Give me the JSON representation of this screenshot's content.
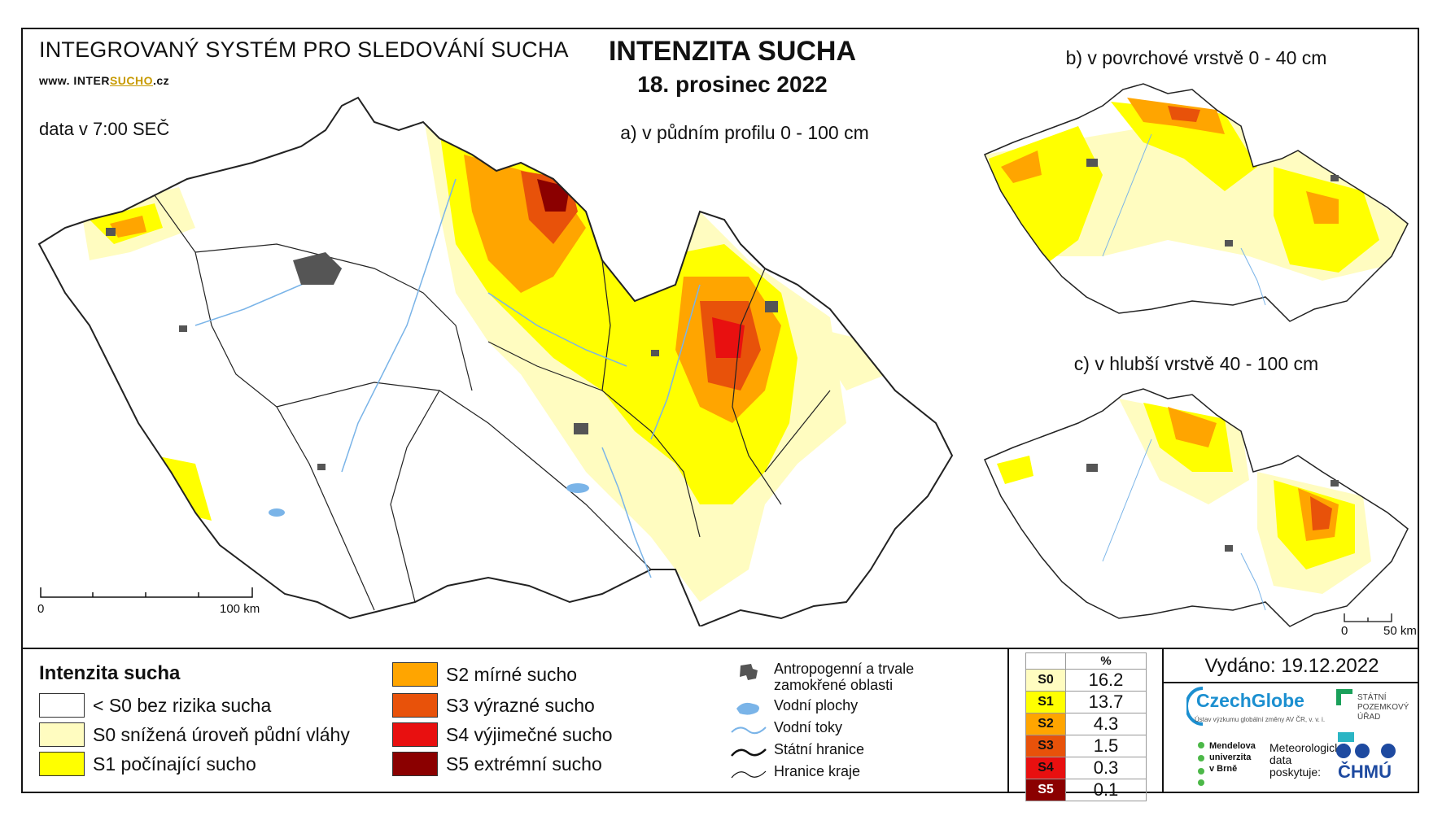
{
  "header": {
    "system_title": "INTEGROVANÝ SYSTÉM PRO SLEDOVÁNÍ SUCHA",
    "url_prefix": "www. INTER",
    "url_mid": "SUCHO",
    "url_suffix": ".cz",
    "data_time": "data v 7:00 SEČ",
    "main_title": "INTENZITA SUCHA",
    "date": "18. prosinec 2022"
  },
  "maps": {
    "a_label": "a) v půdním profilu 0 - 100 cm",
    "b_label": "b) v povrchové vrstvě 0 - 40 cm",
    "c_label": "c) v hlubší vrstvě 40 - 100 cm",
    "scale_main_start": "0",
    "scale_main_end": "100 km",
    "scale_small_start": "0",
    "scale_small_end": "50 km"
  },
  "legend": {
    "title": "Intenzita sucha",
    "classes": [
      {
        "label": "< S0 bez rizika sucha",
        "color": "#ffffff"
      },
      {
        "label": "S0 snížená úroveň půdní vláhy",
        "color": "#fffcc0"
      },
      {
        "label": "S1 počínající sucho",
        "color": "#ffff00"
      },
      {
        "label": "S2 mírné sucho",
        "color": "#ffa500"
      },
      {
        "label": "S3 výrazné sucho",
        "color": "#e8520a"
      },
      {
        "label": "S4 výjimečné sucho",
        "color": "#e81010"
      },
      {
        "label": "S5 extrémní sucho",
        "color": "#8b0000"
      }
    ]
  },
  "symbols": {
    "anthropogenic_1": "Antropogenní a trvale",
    "anthropogenic_2": "zamokřené oblasti",
    "water_bodies": "Vodní plochy",
    "streams": "Vodní toky",
    "state_border": "Státní hranice",
    "region_border": "Hranice kraje"
  },
  "stats": {
    "header": "%",
    "rows": [
      {
        "cls": "S0",
        "value": "16.2",
        "color": "#fffcc0"
      },
      {
        "cls": "S1",
        "value": "13.7",
        "color": "#ffff00"
      },
      {
        "cls": "S2",
        "value": "4.3",
        "color": "#ffa500"
      },
      {
        "cls": "S3",
        "value": "1.5",
        "color": "#e8520a"
      },
      {
        "cls": "S4",
        "value": "0.3",
        "color": "#e81010"
      },
      {
        "cls": "S5",
        "value": "0.1",
        "color": "#8b0000"
      }
    ]
  },
  "footer": {
    "issued": "Vydáno: 19.12.2022",
    "czechglobe": "CzechGlobe",
    "czechglobe_sub": "Ústav výzkumu globální změny AV ČR, v. v. i.",
    "spu_1": "STÁTNÍ",
    "spu_2": "POZEMKOVÝ",
    "spu_3": "ÚŘAD",
    "mendel_1": "Mendelova",
    "mendel_2": "univerzita",
    "mendel_3": "v Brně",
    "met_1": "Meteorologická",
    "met_2": "data",
    "met_3": "poskytuje:",
    "chmu": "ČHMÚ"
  }
}
